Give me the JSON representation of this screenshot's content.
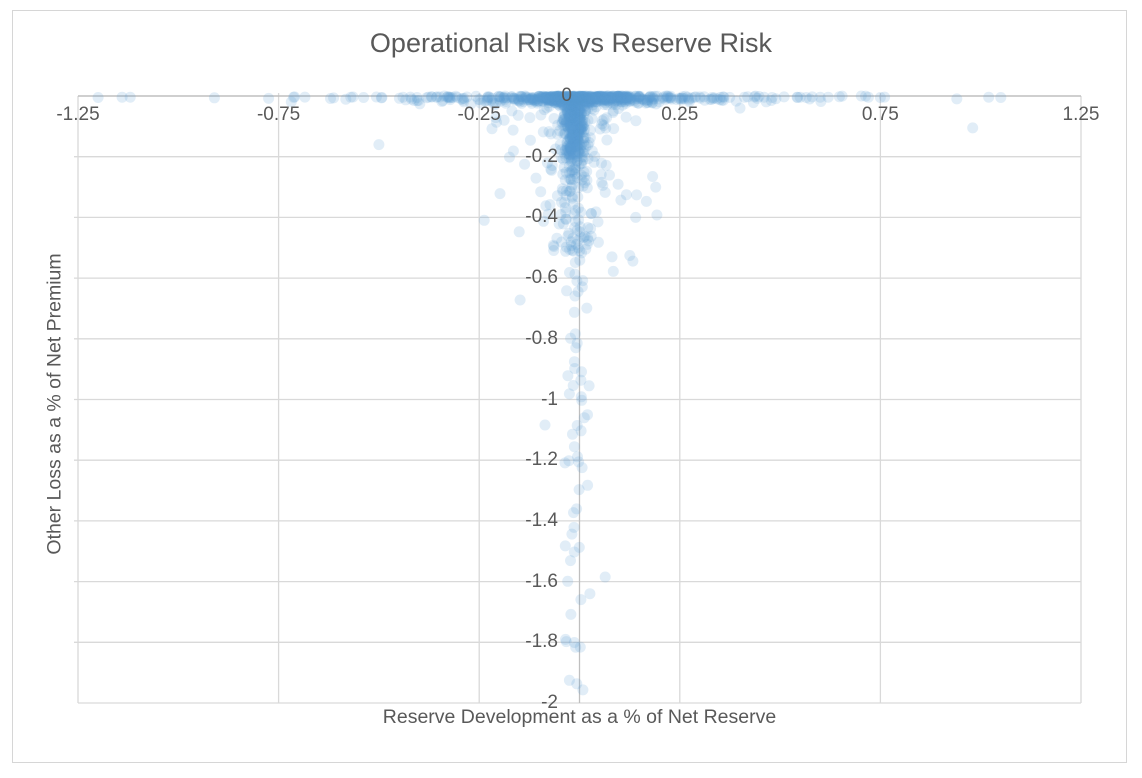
{
  "chart_data": {
    "type": "scatter",
    "title": "Operational Risk vs Reserve Risk",
    "xlabel": "Reserve Development as a % of Net Reserve",
    "ylabel": "Other Loss as a % of Net Premium",
    "xlim": [
      -1.25,
      1.25
    ],
    "ylim": [
      -2,
      0
    ],
    "x_ticks": [
      {
        "v": -1.25,
        "label": "-1.25"
      },
      {
        "v": -0.75,
        "label": "-0.75"
      },
      {
        "v": -0.25,
        "label": "-0.25"
      },
      {
        "v": 0.25,
        "label": "0.25"
      },
      {
        "v": 0.75,
        "label": "0.75"
      },
      {
        "v": 1.25,
        "label": "1.25"
      }
    ],
    "y_ticks": [
      {
        "v": 0,
        "label": "0"
      },
      {
        "v": -0.2,
        "label": "-0.2"
      },
      {
        "v": -0.4,
        "label": "-0.4"
      },
      {
        "v": -0.6,
        "label": "-0.6"
      },
      {
        "v": -0.8,
        "label": "-0.8"
      },
      {
        "v": -1,
        "label": "-1"
      },
      {
        "v": -1.2,
        "label": "-1.2"
      },
      {
        "v": -1.4,
        "label": "-1.4"
      },
      {
        "v": -1.6,
        "label": "-1.6"
      },
      {
        "v": -1.8,
        "label": "-1.8"
      },
      {
        "v": -2,
        "label": "-2"
      }
    ],
    "grid": true,
    "legend": "none",
    "marker": {
      "shape": "circle",
      "color": "#5B9BD5",
      "opacity": 0.18,
      "radius_px": 5.5
    },
    "colors": {
      "grid": "#D9D9D9",
      "axis": "#BFBFBF",
      "text": "#595959",
      "border": "#D6D6D6"
    },
    "point_cloud": {
      "seed": 42,
      "clusters": [
        {
          "name": "origin-band-dense",
          "n": 380,
          "x": {
            "dist": "normal",
            "mean": -0.005,
            "sd": 0.065
          },
          "y": {
            "dist": "halfnormal",
            "sd": 0.01
          },
          "x_range": [
            -1.23,
            1.06
          ],
          "y_range": [
            -0.06,
            0
          ]
        },
        {
          "name": "origin-band-medium",
          "n": 240,
          "x": {
            "dist": "normal",
            "mean": 0,
            "sd": 0.16
          },
          "y": {
            "dist": "halfnormal",
            "sd": 0.013
          },
          "x_range": [
            -1.23,
            1.06
          ],
          "y_range": [
            -0.08,
            0
          ]
        },
        {
          "name": "origin-band-wide",
          "n": 130,
          "x": {
            "dist": "normal",
            "mean": 0,
            "sd": 0.4
          },
          "y": {
            "dist": "halfnormal",
            "sd": 0.009
          },
          "x_range": [
            -1.23,
            1.06
          ],
          "y_range": [
            -0.05,
            0
          ]
        },
        {
          "name": "funnel-dense",
          "n": 330,
          "x": {
            "dist": "normal",
            "mean": -0.013,
            "sd": 0.013
          },
          "y": {
            "dist": "halfnormal",
            "sd": 0.105
          },
          "x_range": [
            -0.08,
            0.05
          ],
          "y_range": [
            -0.34,
            0
          ]
        },
        {
          "name": "funnel-stream",
          "n": 110,
          "x": {
            "dist": "normal",
            "mean": -0.012,
            "sd": 0.02
          },
          "y": {
            "dist": "uniform",
            "min": -0.52,
            "max": -0.03
          },
          "x_range": [
            -0.09,
            0.06
          ],
          "y_range": [
            -0.52,
            0
          ]
        },
        {
          "name": "funnel-halo",
          "n": 150,
          "x": {
            "dist": "normal",
            "mean": -0.02,
            "sd": 0.085
          },
          "y": {
            "dist": "halfnormal",
            "sd": 0.21
          },
          "x_range": [
            -0.26,
            0.26
          ],
          "y_range": [
            -0.75,
            0
          ]
        },
        {
          "name": "deep-tail",
          "n": 64,
          "x": {
            "dist": "normal",
            "mean": -0.008,
            "sd": 0.017
          },
          "y": {
            "dist": "uniform",
            "min": -1.99,
            "max": -0.35
          },
          "x_range": [
            -0.07,
            0.07
          ],
          "y_range": [
            -1.99,
            -0.3
          ]
        }
      ]
    },
    "outlier_points": [
      [
        -1.2,
        -0.005
      ],
      [
        -1.14,
        -0.004
      ],
      [
        -1.12,
        -0.004
      ],
      [
        -0.71,
        -0.003
      ],
      [
        -0.57,
        -0.004
      ],
      [
        -0.5,
        -0.16
      ],
      [
        -0.44,
        -0.004
      ],
      [
        -0.405,
        -0.005
      ],
      [
        -0.368,
        -0.003
      ],
      [
        -0.33,
        -0.004
      ],
      [
        -0.305,
        -0.005
      ],
      [
        0.27,
        -0.004
      ],
      [
        0.3,
        -0.003
      ],
      [
        0.33,
        -0.005
      ],
      [
        0.36,
        -0.004
      ],
      [
        0.4,
        -0.04
      ],
      [
        0.46,
        -0.004
      ],
      [
        0.48,
        -0.005
      ],
      [
        0.51,
        -0.003
      ],
      [
        0.55,
        -0.004
      ],
      [
        0.565,
        -0.005
      ],
      [
        0.58,
        -0.003
      ],
      [
        0.6,
        -0.004
      ],
      [
        0.62,
        -0.004
      ],
      [
        0.72,
        -0.004
      ],
      [
        0.75,
        -0.005
      ],
      [
        1.02,
        -0.004
      ],
      [
        1.05,
        -0.005
      ],
      [
        0.98,
        -0.105
      ],
      [
        0.19,
        -0.3
      ],
      [
        0.193,
        -0.392
      ],
      [
        0.14,
        -0.4
      ],
      [
        0.081,
        -0.53
      ],
      [
        0.133,
        -0.544
      ],
      [
        -0.148,
        -0.672
      ],
      [
        -0.086,
        -1.084
      ],
      [
        0.064,
        -1.585
      ],
      [
        0.026,
        -1.64
      ]
    ]
  }
}
